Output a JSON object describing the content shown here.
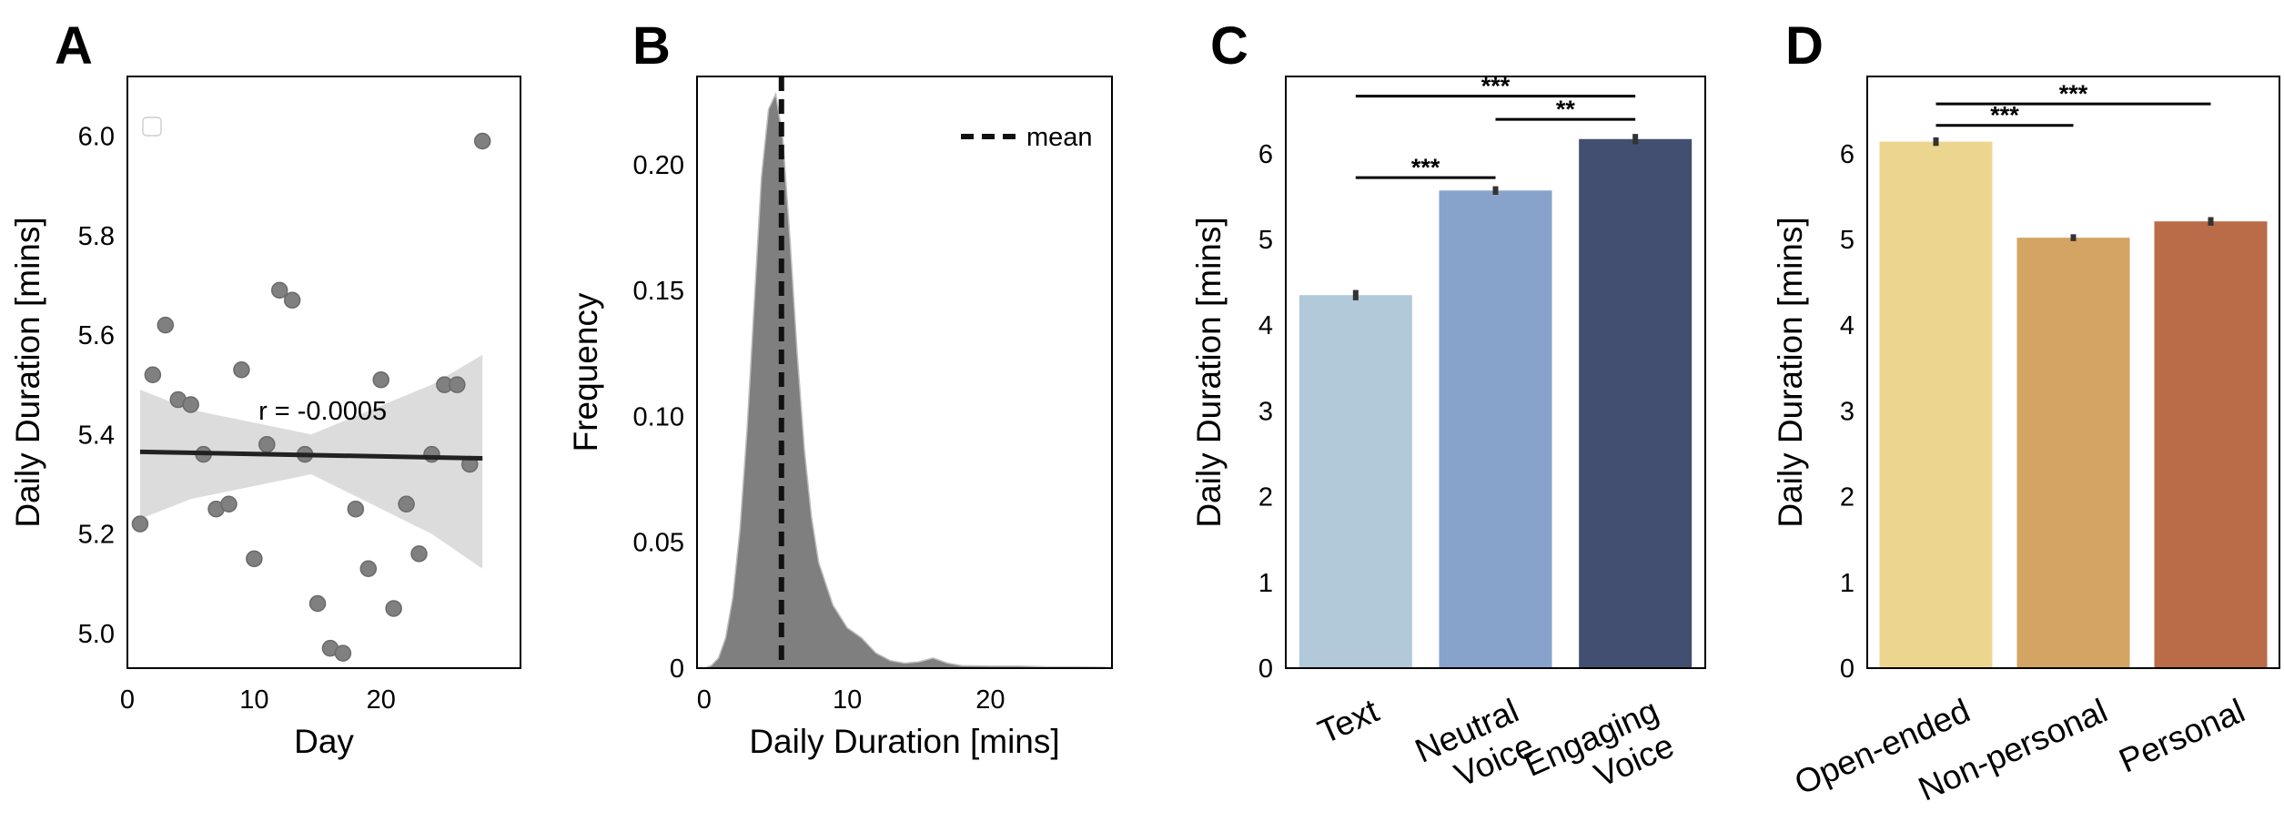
{
  "colors": {
    "scatter_point": "#808080",
    "scatter_edge": "#6a6a6a",
    "ci_band": "#dcdcdc",
    "regression_line": "#222222",
    "kde_fill": "#7f7f7f",
    "mean_line": "#111111",
    "errorbar": "#333333"
  },
  "chart_data": [
    {
      "panel": "A",
      "type": "scatter",
      "xlabel": "Day",
      "ylabel": "Daily Duration [mins]",
      "xlim": [
        0,
        31
      ],
      "ylim": [
        4.93,
        6.12
      ],
      "xticks": [
        0,
        10,
        20
      ],
      "yticks": [
        5.0,
        5.2,
        5.4,
        5.6,
        5.8,
        6.0
      ],
      "points": [
        [
          1,
          5.22
        ],
        [
          2,
          5.52
        ],
        [
          3,
          5.62
        ],
        [
          4,
          5.47
        ],
        [
          5,
          5.46
        ],
        [
          6,
          5.36
        ],
        [
          7,
          5.25
        ],
        [
          8,
          5.26
        ],
        [
          9,
          5.53
        ],
        [
          10,
          5.15
        ],
        [
          11,
          5.38
        ],
        [
          12,
          5.69
        ],
        [
          13,
          5.67
        ],
        [
          14,
          5.36
        ],
        [
          15,
          5.06
        ],
        [
          16,
          4.97
        ],
        [
          17,
          4.96
        ],
        [
          18,
          5.25
        ],
        [
          19,
          5.13
        ],
        [
          20,
          5.51
        ],
        [
          21,
          5.05
        ],
        [
          22,
          5.26
        ],
        [
          23,
          5.16
        ],
        [
          24,
          5.36
        ],
        [
          25,
          5.5
        ],
        [
          26,
          5.5
        ],
        [
          27,
          5.34
        ],
        [
          28,
          5.99
        ]
      ],
      "regression": {
        "x": [
          1,
          28
        ],
        "y": [
          5.365,
          5.352
        ]
      },
      "ci_upper": [
        [
          1,
          5.49
        ],
        [
          5,
          5.45
        ],
        [
          14.5,
          5.4
        ],
        [
          24,
          5.5
        ],
        [
          28,
          5.56
        ]
      ],
      "ci_lower": [
        [
          1,
          5.23
        ],
        [
          5,
          5.27
        ],
        [
          14.5,
          5.32
        ],
        [
          24,
          5.2
        ],
        [
          28,
          5.13
        ]
      ],
      "annotation": "r = -0.0005",
      "legend": "empty box, top-left"
    },
    {
      "panel": "B",
      "type": "area",
      "xlabel": "Daily Duration [mins]",
      "ylabel": "Frequency",
      "xlim": [
        -0.5,
        28.5
      ],
      "ylim": [
        0,
        0.235
      ],
      "xticks": [
        0,
        10,
        20
      ],
      "yticks": [
        0,
        0.05,
        0.1,
        0.15,
        0.2
      ],
      "ytick_labels": [
        "0",
        "0.05",
        "0.10",
        "0.15",
        "0.20"
      ],
      "x": [
        0,
        0.5,
        1,
        1.5,
        2,
        2.5,
        3,
        3.5,
        4,
        4.5,
        5,
        5.5,
        6,
        6.5,
        7,
        7.5,
        8,
        9,
        10,
        11,
        12,
        13,
        14,
        15,
        16,
        17,
        18,
        20,
        22,
        24,
        26,
        28
      ],
      "y": [
        0,
        0.001,
        0.004,
        0.012,
        0.028,
        0.055,
        0.095,
        0.145,
        0.195,
        0.222,
        0.228,
        0.21,
        0.17,
        0.125,
        0.087,
        0.06,
        0.042,
        0.025,
        0.016,
        0.012,
        0.006,
        0.003,
        0.002,
        0.0025,
        0.004,
        0.002,
        0.001,
        0.0008,
        0.0008,
        0.0005,
        0.0005,
        0.0003
      ],
      "mean": 5.4,
      "legend": {
        "label": "mean",
        "position": "top-right"
      }
    },
    {
      "panel": "C",
      "type": "bar",
      "xlabel": "",
      "ylabel": "Daily Duration [mins]",
      "ylim": [
        0,
        6.9
      ],
      "yticks": [
        0,
        1,
        2,
        3,
        4,
        5,
        6
      ],
      "categories": [
        "Text",
        "Neutral Voice",
        "Engaging Voice"
      ],
      "category_lines": [
        [
          "Text"
        ],
        [
          "Neutral",
          "Voice"
        ],
        [
          "Engaging",
          "Voice"
        ]
      ],
      "values": [
        4.35,
        5.57,
        6.17
      ],
      "errors": [
        0.06,
        0.05,
        0.06
      ],
      "colors": [
        "#b1c9d8",
        "#88a3cb",
        "#424f71"
      ],
      "significance": [
        {
          "from": 0,
          "to": 1,
          "y": 5.72,
          "label": "***"
        },
        {
          "from": 1,
          "to": 2,
          "y": 6.4,
          "label": "**"
        },
        {
          "from": 0,
          "to": 2,
          "y": 6.67,
          "label": "***"
        }
      ]
    },
    {
      "panel": "D",
      "type": "bar",
      "xlabel": "",
      "ylabel": "Daily Duration [mins]",
      "ylim": [
        0,
        6.9
      ],
      "yticks": [
        0,
        1,
        2,
        3,
        4,
        5,
        6
      ],
      "categories": [
        "Open-ended",
        "Non-personal",
        "Personal"
      ],
      "category_lines": [
        [
          "Open-ended"
        ],
        [
          "Non-personal"
        ],
        [
          "Personal"
        ]
      ],
      "values": [
        6.14,
        5.02,
        5.21
      ],
      "errors": [
        0.05,
        0.04,
        0.05
      ],
      "colors": [
        "#ecd68f",
        "#d4a462",
        "#ba6b48"
      ],
      "significance": [
        {
          "from": 0,
          "to": 1,
          "y": 6.33,
          "label": "***"
        },
        {
          "from": 0,
          "to": 2,
          "y": 6.58,
          "label": "***"
        }
      ]
    }
  ]
}
